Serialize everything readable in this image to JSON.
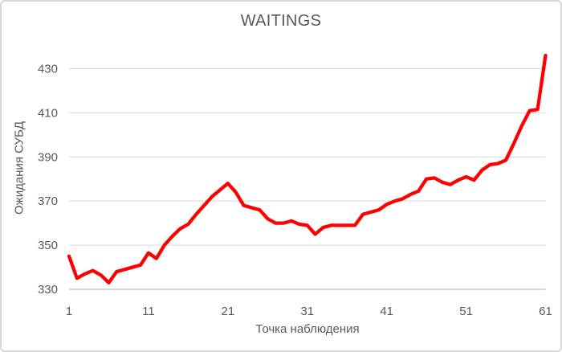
{
  "card": {
    "background": "#FFFFFF",
    "border_color": "#D9D9D9"
  },
  "chart_data": {
    "type": "line",
    "title": "WAITINGS",
    "xlabel": "Точка наблюдения",
    "ylabel": "Ожидания СУБД",
    "xlim": [
      1,
      61
    ],
    "ylim": [
      330,
      440
    ],
    "x_ticks": [
      1,
      11,
      21,
      31,
      41,
      51,
      61
    ],
    "y_ticks": [
      330,
      350,
      370,
      390,
      410,
      430
    ],
    "grid": true,
    "legend": false,
    "text_color": "#595959",
    "gridline_color": "#D9D9D9",
    "axis_line_color": "#BFBFBF",
    "series": [
      {
        "name": "WAITINGS",
        "color": "#FF0000",
        "x_start": 1,
        "values": [
          345,
          335,
          337,
          338.5,
          336.5,
          333,
          338,
          339,
          340,
          341,
          346.5,
          344,
          350,
          354,
          357.5,
          359.5,
          364,
          368,
          372,
          375,
          378,
          374,
          368,
          367,
          366,
          362,
          360,
          360,
          361,
          359.5,
          359,
          355,
          358,
          359,
          359,
          359,
          359,
          364,
          365,
          366,
          368.5,
          370,
          371,
          373,
          374.5,
          380,
          380.5,
          378.5,
          377.5,
          379.5,
          381,
          379.5,
          384,
          386.5,
          387,
          388.5,
          396,
          404,
          411,
          411.5,
          436
        ]
      }
    ]
  }
}
